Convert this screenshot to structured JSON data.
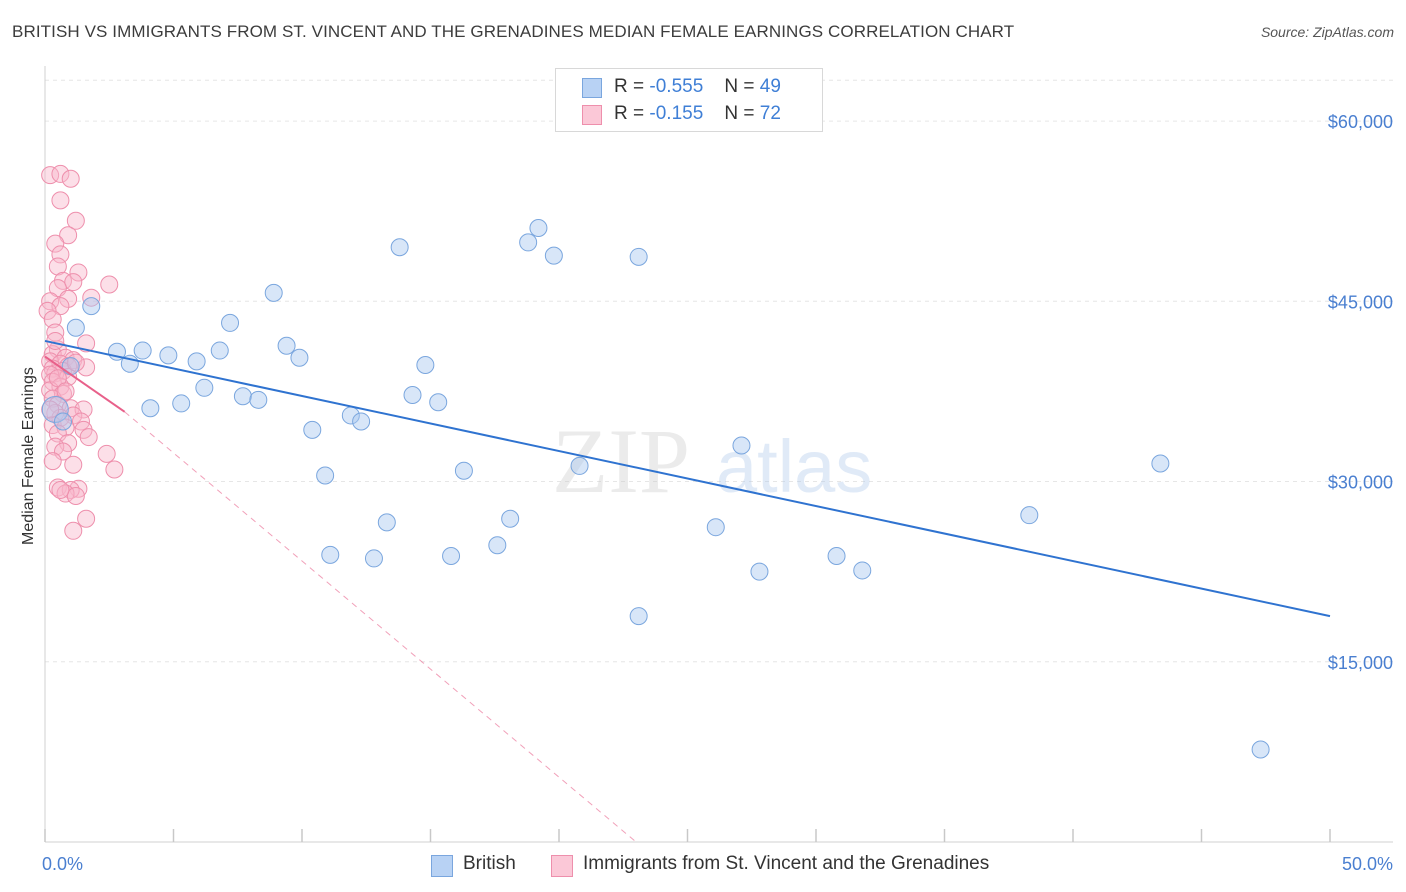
{
  "title": "BRITISH VS IMMIGRANTS FROM ST. VINCENT AND THE GRENADINES MEDIAN FEMALE EARNINGS CORRELATION CHART",
  "source": "Source: ZipAtlas.com",
  "watermark": {
    "zip": "ZIP",
    "atlas": "atlas"
  },
  "legend": {
    "british": {
      "r_label": "R =",
      "r_value": "-0.555",
      "n_label": "N =",
      "n_value": "49"
    },
    "immigrants": {
      "r_label": "R =",
      "r_value": "-0.155",
      "n_label": "N =",
      "n_value": "72"
    }
  },
  "bottom_legend": {
    "british": "British",
    "immigrants": "Immigrants from St. Vincent and the Grenadines"
  },
  "colors": {
    "british_fill": "#a9c8f0",
    "british_stroke": "#7aa6de",
    "british_line": "#2f73d0",
    "immigrants_fill": "#f8b8cc",
    "immigrants_stroke": "#ee8fac",
    "immigrants_line": "#e8608a",
    "axis_label": "#4a7fd0",
    "grid": "#e6e6e6"
  },
  "chart_data": {
    "type": "scatter",
    "title": "BRITISH VS IMMIGRANTS FROM ST. VINCENT AND THE GRENADINES MEDIAN FEMALE EARNINGS CORRELATION CHART",
    "xlabel": "",
    "ylabel": "Median Female Earnings",
    "xlim": [
      0,
      50
    ],
    "ylim": [
      0,
      64000
    ],
    "x_tick_labels": [
      "0.0%",
      "50.0%"
    ],
    "y_ticks": [
      15000,
      30000,
      45000,
      60000
    ],
    "y_tick_labels": [
      "$15,000",
      "$30,000",
      "$45,000",
      "$60,000"
    ],
    "grid": true,
    "series": [
      {
        "name": "British",
        "points": [
          [
            0.4,
            36000
          ],
          [
            1.2,
            42800
          ],
          [
            1.8,
            44600
          ],
          [
            1.0,
            39600
          ],
          [
            2.8,
            40800
          ],
          [
            3.3,
            39800
          ],
          [
            3.8,
            40900
          ],
          [
            4.1,
            36100
          ],
          [
            4.8,
            40500
          ],
          [
            5.3,
            36500
          ],
          [
            5.9,
            40000
          ],
          [
            6.2,
            37800
          ],
          [
            6.8,
            40900
          ],
          [
            7.2,
            43200
          ],
          [
            7.7,
            37100
          ],
          [
            8.3,
            36800
          ],
          [
            8.9,
            45700
          ],
          [
            9.4,
            41300
          ],
          [
            9.9,
            40300
          ],
          [
            10.4,
            34300
          ],
          [
            10.9,
            30500
          ],
          [
            11.1,
            23900
          ],
          [
            11.9,
            35500
          ],
          [
            12.3,
            35000
          ],
          [
            12.8,
            23600
          ],
          [
            13.3,
            26600
          ],
          [
            13.8,
            49500
          ],
          [
            14.3,
            37200
          ],
          [
            14.8,
            39700
          ],
          [
            15.3,
            36600
          ],
          [
            15.8,
            23800
          ],
          [
            16.3,
            30900
          ],
          [
            17.6,
            24700
          ],
          [
            18.1,
            26900
          ],
          [
            18.8,
            49900
          ],
          [
            19.2,
            51100
          ],
          [
            19.8,
            48800
          ],
          [
            20.8,
            31300
          ],
          [
            23.1,
            18800
          ],
          [
            23.1,
            48700
          ],
          [
            26.1,
            26200
          ],
          [
            27.1,
            33000
          ],
          [
            27.8,
            22500
          ],
          [
            30.8,
            23800
          ],
          [
            31.8,
            22600
          ],
          [
            38.3,
            27200
          ],
          [
            43.4,
            31500
          ],
          [
            47.3,
            7700
          ],
          [
            0.7,
            35000
          ]
        ]
      },
      {
        "name": "Immigrants from St. Vincent and the Grenadines",
        "points": [
          [
            0.2,
            55500
          ],
          [
            0.6,
            55600
          ],
          [
            1.0,
            55200
          ],
          [
            0.6,
            53400
          ],
          [
            1.2,
            51700
          ],
          [
            0.9,
            50500
          ],
          [
            0.4,
            49800
          ],
          [
            0.6,
            48900
          ],
          [
            0.5,
            47900
          ],
          [
            1.3,
            47400
          ],
          [
            0.7,
            46700
          ],
          [
            1.1,
            46600
          ],
          [
            2.5,
            46400
          ],
          [
            0.5,
            46100
          ],
          [
            0.9,
            45200
          ],
          [
            1.8,
            45300
          ],
          [
            0.2,
            45000
          ],
          [
            0.6,
            44600
          ],
          [
            0.1,
            44200
          ],
          [
            0.3,
            43500
          ],
          [
            0.4,
            42400
          ],
          [
            1.6,
            41500
          ],
          [
            0.5,
            41000
          ],
          [
            0.3,
            40600
          ],
          [
            0.8,
            40300
          ],
          [
            1.1,
            40100
          ],
          [
            0.2,
            40000
          ],
          [
            0.6,
            39800
          ],
          [
            0.9,
            39600
          ],
          [
            1.6,
            39500
          ],
          [
            0.3,
            39400
          ],
          [
            0.7,
            39200
          ],
          [
            0.4,
            39000
          ],
          [
            0.2,
            38900
          ],
          [
            0.9,
            38700
          ],
          [
            0.3,
            38300
          ],
          [
            0.6,
            37900
          ],
          [
            0.2,
            37600
          ],
          [
            0.7,
            37300
          ],
          [
            0.3,
            36900
          ],
          [
            0.5,
            36400
          ],
          [
            1.0,
            36100
          ],
          [
            1.5,
            36000
          ],
          [
            0.4,
            35700
          ],
          [
            1.1,
            35500
          ],
          [
            0.6,
            35300
          ],
          [
            1.4,
            35000
          ],
          [
            0.3,
            34700
          ],
          [
            0.8,
            34500
          ],
          [
            1.5,
            34300
          ],
          [
            0.5,
            34000
          ],
          [
            1.7,
            33700
          ],
          [
            0.9,
            33200
          ],
          [
            0.4,
            32900
          ],
          [
            0.7,
            32500
          ],
          [
            2.4,
            32300
          ],
          [
            0.3,
            31700
          ],
          [
            1.1,
            31400
          ],
          [
            2.7,
            31000
          ],
          [
            0.5,
            29500
          ],
          [
            1.3,
            29400
          ],
          [
            1.0,
            29300
          ],
          [
            0.8,
            29000
          ],
          [
            1.2,
            28800
          ],
          [
            0.6,
            29300
          ],
          [
            1.6,
            26900
          ],
          [
            1.1,
            25900
          ],
          [
            0.5,
            38600
          ],
          [
            0.2,
            36000
          ],
          [
            0.8,
            37500
          ],
          [
            0.4,
            41700
          ],
          [
            1.2,
            39900
          ]
        ]
      }
    ],
    "trend_lines": [
      {
        "series": "British",
        "from": [
          0,
          41700
        ],
        "to": [
          50,
          18800
        ],
        "style": "solid"
      },
      {
        "series": "Immigrants from St. Vincent and the Grenadines",
        "from": [
          0,
          40400
        ],
        "to": [
          3.1,
          35800
        ],
        "style": "solid"
      },
      {
        "series": "Immigrants from St. Vincent and the Grenadines",
        "from": [
          3.1,
          35800
        ],
        "to": [
          23.0,
          0
        ],
        "style": "dashed"
      }
    ]
  }
}
